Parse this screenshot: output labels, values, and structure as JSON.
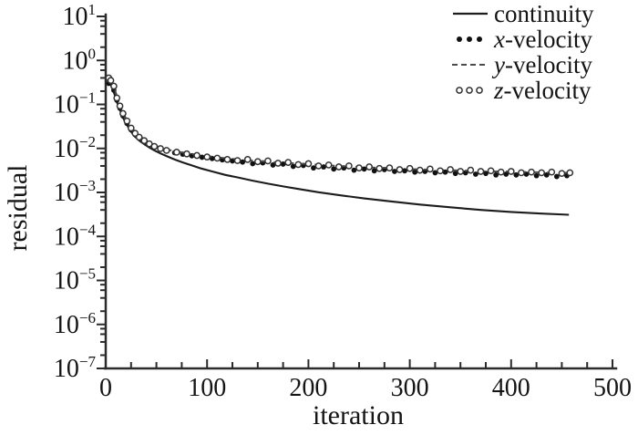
{
  "figure": {
    "background": "#ffffff",
    "ink": "#141414",
    "axis_color": "#2b2b2b"
  },
  "chart_data": {
    "type": "line",
    "title": "",
    "xlabel": "iteration",
    "ylabel": "residual",
    "grid": false,
    "legend_position": "top-right",
    "x_axis": {
      "min": 0,
      "max": 500,
      "major_ticks": [
        0,
        100,
        200,
        300,
        400,
        500
      ],
      "minor_tick_step": 25
    },
    "y_axis": {
      "scale": "log",
      "min": 1e-07,
      "max": 10,
      "tick_labels": [
        "10^1",
        "10^0",
        "10^-1",
        "10^-2",
        "10^-3",
        "10^-4",
        "10^-5",
        "10^-6",
        "10^-7"
      ],
      "minor_tick_multiples": [
        2,
        4,
        6,
        8
      ]
    },
    "series": [
      {
        "name": "continuity",
        "style": "solid-line",
        "color": "#1c1c1c",
        "points": [
          [
            3,
            0.32
          ],
          [
            5,
            0.28
          ],
          [
            8,
            0.19
          ],
          [
            11,
            0.115
          ],
          [
            14,
            0.075
          ],
          [
            17,
            0.05
          ],
          [
            21,
            0.034
          ],
          [
            25,
            0.024
          ],
          [
            29,
            0.0185
          ],
          [
            33,
            0.0152
          ],
          [
            38,
            0.0125
          ],
          [
            43,
            0.0105
          ],
          [
            48,
            0.009
          ],
          [
            54,
            0.0077
          ],
          [
            60,
            0.0067
          ],
          [
            68,
            0.0056
          ],
          [
            76,
            0.0048
          ],
          [
            85,
            0.0041
          ],
          [
            94,
            0.0035
          ],
          [
            105,
            0.003
          ],
          [
            118,
            0.0025
          ],
          [
            130,
            0.0022
          ],
          [
            145,
            0.00185
          ],
          [
            160,
            0.00158
          ],
          [
            175,
            0.00137
          ],
          [
            190,
            0.0012
          ],
          [
            210,
            0.00101
          ],
          [
            230,
            0.00087
          ],
          [
            255,
            0.00073
          ],
          [
            280,
            0.00063
          ],
          [
            310,
            0.00053
          ],
          [
            340,
            0.00046
          ],
          [
            370,
            0.0004
          ],
          [
            400,
            0.00036
          ],
          [
            430,
            0.00033
          ],
          [
            457,
            0.00031
          ]
        ]
      },
      {
        "name": "x-velocity",
        "style": "filled-dots",
        "color": "#111111",
        "points": [
          [
            3,
            0.3
          ],
          [
            5,
            0.33
          ],
          [
            8,
            0.21
          ],
          [
            11,
            0.125
          ],
          [
            14,
            0.082
          ],
          [
            17,
            0.055
          ],
          [
            21,
            0.037
          ],
          [
            25,
            0.0265
          ],
          [
            29,
            0.0205
          ],
          [
            33,
            0.017
          ],
          [
            38,
            0.0142
          ],
          [
            43,
            0.0122
          ],
          [
            48,
            0.0108
          ],
          [
            54,
            0.0096
          ],
          [
            60,
            0.0088
          ],
          [
            68,
            0.008
          ],
          [
            76,
            0.0074
          ],
          [
            85,
            0.0068
          ],
          [
            95,
            0.0063
          ],
          [
            105,
            0.0059
          ],
          [
            115,
            0.0055
          ],
          [
            125,
            0.0052
          ],
          [
            135,
            0.0049
          ],
          [
            145,
            0.0045
          ],
          [
            155,
            0.0047
          ],
          [
            165,
            0.0042
          ],
          [
            175,
            0.0044
          ],
          [
            185,
            0.0039
          ],
          [
            195,
            0.0041
          ],
          [
            205,
            0.0036
          ],
          [
            215,
            0.0038
          ],
          [
            225,
            0.0034
          ],
          [
            235,
            0.0036
          ],
          [
            245,
            0.0032
          ],
          [
            255,
            0.0034
          ],
          [
            265,
            0.0031
          ],
          [
            275,
            0.0033
          ],
          [
            285,
            0.003
          ],
          [
            295,
            0.0031
          ],
          [
            305,
            0.0029
          ],
          [
            315,
            0.003
          ],
          [
            325,
            0.0028
          ],
          [
            335,
            0.0029
          ],
          [
            345,
            0.0027
          ],
          [
            355,
            0.0028
          ],
          [
            365,
            0.0026
          ],
          [
            375,
            0.0027
          ],
          [
            385,
            0.0025
          ],
          [
            395,
            0.0026
          ],
          [
            405,
            0.0025
          ],
          [
            415,
            0.0026
          ],
          [
            425,
            0.0024
          ],
          [
            435,
            0.0025
          ],
          [
            445,
            0.0023
          ],
          [
            455,
            0.0024
          ]
        ]
      },
      {
        "name": "y-velocity",
        "style": "dashed-line",
        "color": "#4a4a4a",
        "points": [
          [
            3,
            0.34
          ],
          [
            6,
            0.36
          ],
          [
            9,
            0.22
          ],
          [
            12,
            0.13
          ],
          [
            15,
            0.085
          ],
          [
            18,
            0.058
          ],
          [
            22,
            0.04
          ],
          [
            26,
            0.029
          ],
          [
            30,
            0.022
          ],
          [
            35,
            0.018
          ],
          [
            40,
            0.015
          ],
          [
            45,
            0.0128
          ],
          [
            50,
            0.0113
          ],
          [
            56,
            0.0101
          ],
          [
            62,
            0.0093
          ],
          [
            70,
            0.0085
          ],
          [
            80,
            0.0078
          ],
          [
            90,
            0.0072
          ],
          [
            100,
            0.0067
          ],
          [
            112,
            0.0062
          ],
          [
            125,
            0.0058
          ],
          [
            140,
            0.0054
          ],
          [
            155,
            0.0051
          ],
          [
            170,
            0.0048
          ],
          [
            185,
            0.0046
          ],
          [
            200,
            0.0044
          ],
          [
            220,
            0.0041
          ],
          [
            240,
            0.0039
          ],
          [
            260,
            0.0037
          ],
          [
            280,
            0.0036
          ],
          [
            300,
            0.0034
          ],
          [
            320,
            0.0033
          ],
          [
            340,
            0.0032
          ],
          [
            360,
            0.0031
          ],
          [
            380,
            0.003
          ],
          [
            400,
            0.003
          ],
          [
            420,
            0.0029
          ],
          [
            440,
            0.0028
          ],
          [
            460,
            0.0028
          ]
        ]
      },
      {
        "name": "z-velocity",
        "style": "open-circles",
        "color": "#333333",
        "points": [
          [
            3,
            0.4
          ],
          [
            5,
            0.35
          ],
          [
            8,
            0.26
          ],
          [
            11,
            0.14
          ],
          [
            14,
            0.092
          ],
          [
            17,
            0.062
          ],
          [
            21,
            0.042
          ],
          [
            25,
            0.029
          ],
          [
            29,
            0.022
          ],
          [
            33,
            0.018
          ],
          [
            38,
            0.015
          ],
          [
            43,
            0.0127
          ],
          [
            48,
            0.0111
          ],
          [
            54,
            0.0099
          ],
          [
            60,
            0.009
          ],
          [
            70,
            0.0082
          ],
          [
            80,
            0.0075
          ],
          [
            90,
            0.0069
          ],
          [
            100,
            0.0064
          ],
          [
            110,
            0.006
          ],
          [
            120,
            0.0056
          ],
          [
            130,
            0.0053
          ],
          [
            140,
            0.0056
          ],
          [
            150,
            0.005
          ],
          [
            160,
            0.0052
          ],
          [
            170,
            0.0046
          ],
          [
            180,
            0.0048
          ],
          [
            190,
            0.0043
          ],
          [
            200,
            0.0045
          ],
          [
            210,
            0.004
          ],
          [
            220,
            0.0042
          ],
          [
            230,
            0.0038
          ],
          [
            240,
            0.004
          ],
          [
            250,
            0.0036
          ],
          [
            260,
            0.0038
          ],
          [
            270,
            0.0035
          ],
          [
            280,
            0.0036
          ],
          [
            290,
            0.0033
          ],
          [
            300,
            0.0035
          ],
          [
            310,
            0.0032
          ],
          [
            320,
            0.0034
          ],
          [
            330,
            0.0031
          ],
          [
            340,
            0.0033
          ],
          [
            350,
            0.003
          ],
          [
            360,
            0.0032
          ],
          [
            370,
            0.003
          ],
          [
            380,
            0.0031
          ],
          [
            390,
            0.0029
          ],
          [
            400,
            0.003
          ],
          [
            410,
            0.0028
          ],
          [
            420,
            0.0029
          ],
          [
            430,
            0.0028
          ],
          [
            440,
            0.0029
          ],
          [
            450,
            0.0027
          ],
          [
            458,
            0.0028
          ]
        ]
      }
    ]
  }
}
